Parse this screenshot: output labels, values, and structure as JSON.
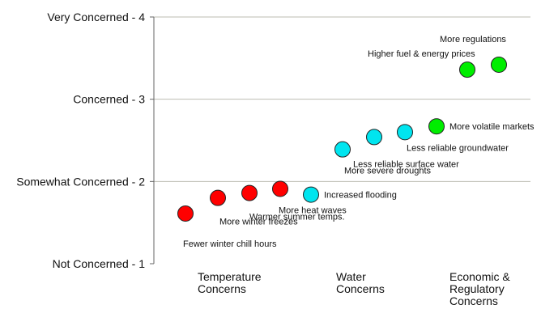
{
  "chart_data": {
    "type": "scatter",
    "title": "",
    "xlabel": "",
    "ylabel": "",
    "ylim": [
      1,
      4
    ],
    "grid": true,
    "legend": "none",
    "y_ticks": [
      {
        "value": 4,
        "label": "Very Concerned -  4"
      },
      {
        "value": 3,
        "label": "Concerned -  3"
      },
      {
        "value": 2,
        "label": "Somewhat Concerned -  2"
      },
      {
        "value": 1,
        "label": "Not Concerned -  1"
      }
    ],
    "groups": [
      {
        "name": "Temperature Concerns",
        "label_lines": [
          "Temperature",
          "Concerns"
        ]
      },
      {
        "name": "Water Concerns",
        "label_lines": [
          "Water",
          "Concerns"
        ]
      },
      {
        "name": "Economic & Regulatory Concerns",
        "label_lines": [
          "Economic &",
          "Regulatory",
          "Concerns"
        ]
      }
    ],
    "colors": {
      "Temperature Concerns": "#ff0000",
      "Water Concerns": "#00e5ef",
      "Economic & Regulatory Concerns": "#00ee00"
    },
    "points": [
      {
        "x": 1,
        "label": "Fewer winter chill hours",
        "y": 1.61,
        "group": "Temperature Concerns"
      },
      {
        "x": 2,
        "label": "More winter freezes",
        "y": 1.8,
        "group": "Temperature Concerns"
      },
      {
        "x": 3,
        "label": "Warmer summer temps.",
        "y": 1.86,
        "group": "Temperature Concerns"
      },
      {
        "x": 4,
        "label": "More heat waves",
        "y": 1.91,
        "group": "Temperature Concerns"
      },
      {
        "x": 5,
        "label": "Increased flooding",
        "y": 1.84,
        "group": "Water Concerns"
      },
      {
        "x": 6,
        "label": "More severe droughts",
        "y": 2.39,
        "group": "Water Concerns"
      },
      {
        "x": 7,
        "label": "Less reliable surface water",
        "y": 2.54,
        "group": "Water Concerns"
      },
      {
        "x": 8,
        "label": "Less reliable groundwater",
        "y": 2.6,
        "group": "Water Concerns"
      },
      {
        "x": 9,
        "label": "More volatile markets",
        "y": 2.67,
        "group": "Economic & Regulatory Concerns"
      },
      {
        "x": 10,
        "label": "Higher fuel & energy prices",
        "y": 3.36,
        "group": "Economic & Regulatory Concerns"
      },
      {
        "x": 11,
        "label": "More regulations",
        "y": 3.42,
        "group": "Economic & Regulatory Concerns"
      }
    ]
  }
}
